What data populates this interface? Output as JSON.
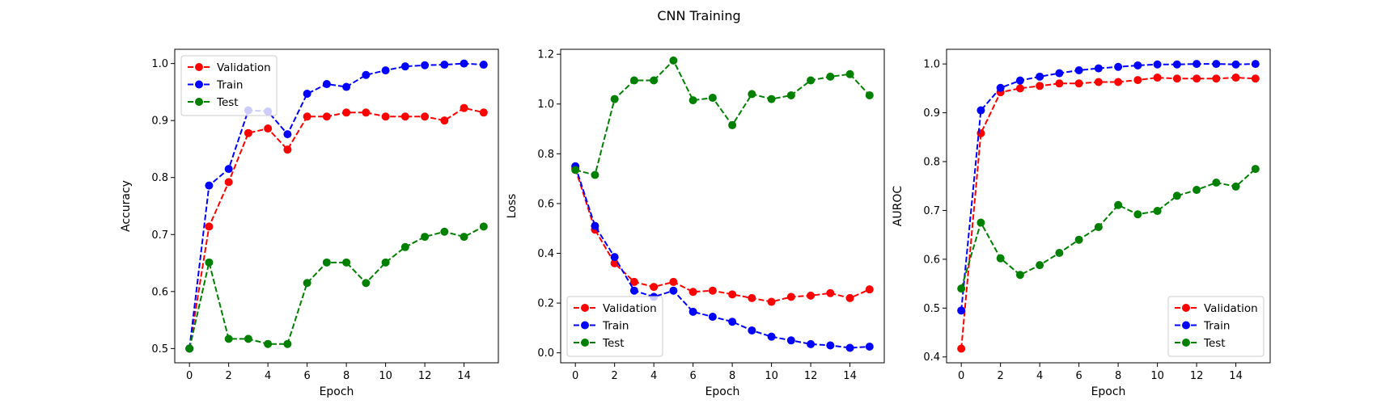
{
  "figure_title": "CNN Training",
  "series_colors": {
    "Validation": "#ff0000",
    "Train": "#0000ff",
    "Test": "#008000"
  },
  "chart_data": [
    {
      "type": "line",
      "xlabel": "Epoch",
      "ylabel": "Accuracy",
      "xlim": [
        -0.75,
        15.75
      ],
      "ylim": [
        0.475,
        1.025
      ],
      "xticks": [
        0,
        2,
        4,
        6,
        8,
        10,
        12,
        14
      ],
      "xtick_labels": [
        "0",
        "2",
        "4",
        "6",
        "8",
        "10",
        "12",
        "14"
      ],
      "yticks": [
        0.5,
        0.6,
        0.7,
        0.8,
        0.9,
        1.0
      ],
      "ytick_labels": [
        "0.5",
        "0.6",
        "0.7",
        "0.8",
        "0.9",
        "1.0"
      ],
      "legend_position": "upper left",
      "x": [
        0,
        1,
        2,
        3,
        4,
        5,
        6,
        7,
        8,
        9,
        10,
        11,
        12,
        13,
        14,
        15
      ],
      "series": [
        {
          "name": "Validation",
          "color": "#ff0000",
          "values": [
            0.5,
            0.714,
            0.792,
            0.878,
            0.886,
            0.849,
            0.907,
            0.907,
            0.914,
            0.914,
            0.907,
            0.907,
            0.907,
            0.9,
            0.922,
            0.914
          ]
        },
        {
          "name": "Train",
          "color": "#0000ff",
          "values": [
            0.5,
            0.786,
            0.815,
            0.918,
            0.916,
            0.876,
            0.947,
            0.964,
            0.959,
            0.98,
            0.988,
            0.995,
            0.997,
            0.998,
            1.0,
            0.998
          ]
        },
        {
          "name": "Test",
          "color": "#008000",
          "values": [
            0.5,
            0.651,
            0.517,
            0.517,
            0.508,
            0.508,
            0.615,
            0.651,
            0.651,
            0.615,
            0.651,
            0.678,
            0.696,
            0.705,
            0.696,
            0.714
          ]
        }
      ]
    },
    {
      "type": "line",
      "xlabel": "Epoch",
      "ylabel": "Loss",
      "xlim": [
        -0.75,
        15.75
      ],
      "ylim": [
        -0.04,
        1.22
      ],
      "xticks": [
        0,
        2,
        4,
        6,
        8,
        10,
        12,
        14
      ],
      "xtick_labels": [
        "0",
        "2",
        "4",
        "6",
        "8",
        "10",
        "12",
        "14"
      ],
      "yticks": [
        0.0,
        0.2,
        0.4,
        0.6,
        0.8,
        1.0,
        1.2
      ],
      "ytick_labels": [
        "0.0",
        "0.2",
        "0.4",
        "0.6",
        "0.8",
        "1.0",
        "1.2"
      ],
      "legend_position": "lower left",
      "x": [
        0,
        1,
        2,
        3,
        4,
        5,
        6,
        7,
        8,
        9,
        10,
        11,
        12,
        13,
        14,
        15
      ],
      "series": [
        {
          "name": "Validation",
          "color": "#ff0000",
          "values": [
            0.74,
            0.495,
            0.36,
            0.285,
            0.265,
            0.285,
            0.245,
            0.25,
            0.235,
            0.22,
            0.205,
            0.225,
            0.23,
            0.24,
            0.22,
            0.255
          ]
        },
        {
          "name": "Train",
          "color": "#0000ff",
          "values": [
            0.75,
            0.51,
            0.385,
            0.25,
            0.225,
            0.25,
            0.165,
            0.145,
            0.125,
            0.09,
            0.065,
            0.05,
            0.035,
            0.03,
            0.02,
            0.025
          ]
        },
        {
          "name": "Test",
          "color": "#008000",
          "values": [
            0.735,
            0.715,
            1.02,
            1.095,
            1.095,
            1.175,
            1.015,
            1.025,
            0.915,
            1.04,
            1.02,
            1.035,
            1.095,
            1.11,
            1.12,
            1.035
          ]
        }
      ]
    },
    {
      "type": "line",
      "xlabel": "Epoch",
      "ylabel": "AUROC",
      "xlim": [
        -0.75,
        15.75
      ],
      "ylim": [
        0.388,
        1.03
      ],
      "xticks": [
        0,
        2,
        4,
        6,
        8,
        10,
        12,
        14
      ],
      "xtick_labels": [
        "0",
        "2",
        "4",
        "6",
        "8",
        "10",
        "12",
        "14"
      ],
      "yticks": [
        0.4,
        0.5,
        0.6,
        0.7,
        0.8,
        0.9,
        1.0
      ],
      "ytick_labels": [
        "0.4",
        "0.5",
        "0.6",
        "0.7",
        "0.8",
        "0.9",
        "1.0"
      ],
      "legend_position": "lower right",
      "x": [
        0,
        1,
        2,
        3,
        4,
        5,
        6,
        7,
        8,
        9,
        10,
        11,
        12,
        13,
        14,
        15
      ],
      "series": [
        {
          "name": "Validation",
          "color": "#ff0000",
          "values": [
            0.417,
            0.858,
            0.942,
            0.95,
            0.955,
            0.96,
            0.96,
            0.963,
            0.963,
            0.967,
            0.972,
            0.97,
            0.97,
            0.97,
            0.972,
            0.97
          ]
        },
        {
          "name": "Train",
          "color": "#0000ff",
          "values": [
            0.495,
            0.905,
            0.951,
            0.966,
            0.974,
            0.981,
            0.987,
            0.991,
            0.994,
            0.997,
            0.999,
            0.999,
            1.0,
            1.0,
            0.999,
            1.0
          ]
        },
        {
          "name": "Test",
          "color": "#008000",
          "values": [
            0.54,
            0.675,
            0.602,
            0.568,
            0.588,
            0.613,
            0.64,
            0.666,
            0.711,
            0.692,
            0.699,
            0.73,
            0.742,
            0.757,
            0.749,
            0.785
          ]
        }
      ]
    }
  ]
}
